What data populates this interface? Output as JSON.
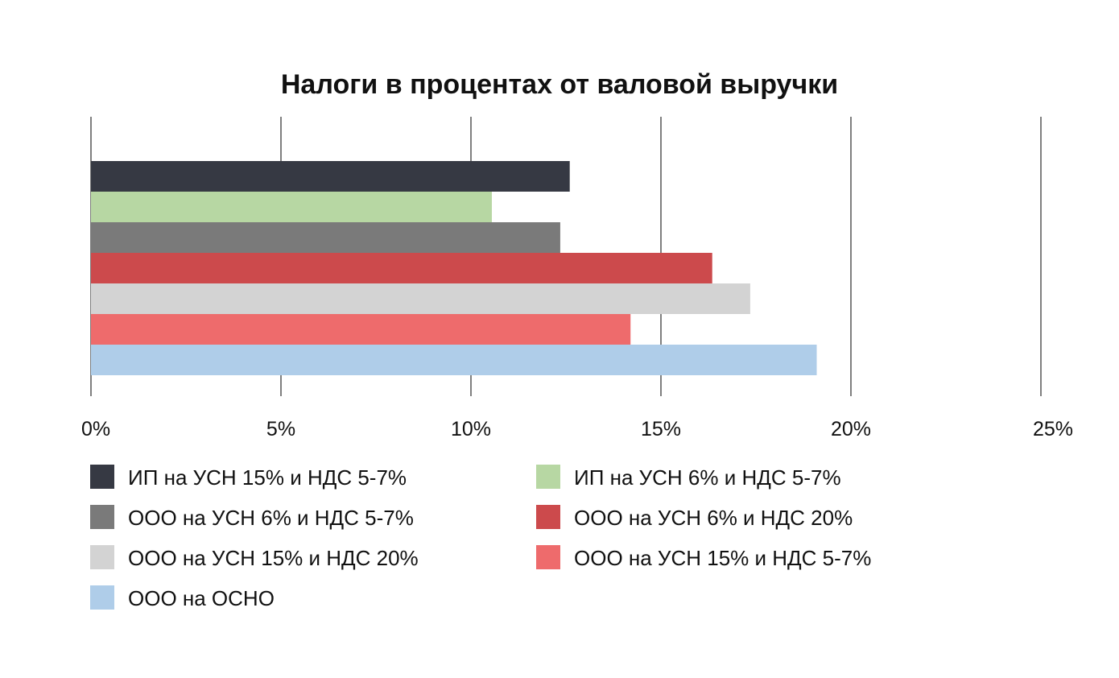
{
  "chart_data": {
    "type": "bar",
    "orientation": "horizontal",
    "title": "Налоги в процентах от валовой выручки",
    "xlabel": "",
    "ylabel": "",
    "xlim": [
      0,
      25
    ],
    "x_ticks": [
      "0%",
      "5%",
      "10%",
      "15%",
      "20%",
      "25%"
    ],
    "grid": "vertical",
    "legend_position": "bottom",
    "series": [
      {
        "name": "ИП на УСН 15% и НДС 5-7%",
        "value": 12.6,
        "color": "#363943"
      },
      {
        "name": "ИП на УСН 6% и НДС 5-7%",
        "value": 10.55,
        "color": "#b7d7a3"
      },
      {
        "name": "ООО на УСН 6% и НДС 5-7%",
        "value": 12.35,
        "color": "#7a7a7a"
      },
      {
        "name": "ООО на УСН 6% и НДС 20%",
        "value": 16.35,
        "color": "#cc4a4c"
      },
      {
        "name": "ООО на УСН 15% и НДС 20%",
        "value": 17.35,
        "color": "#d3d3d3"
      },
      {
        "name": "ООО на УСН 15% и НДС 5-7%",
        "value": 14.2,
        "color": "#ee6b6c"
      },
      {
        "name": "ООО на ОСНО",
        "value": 19.1,
        "color": "#afcde9"
      }
    ]
  }
}
